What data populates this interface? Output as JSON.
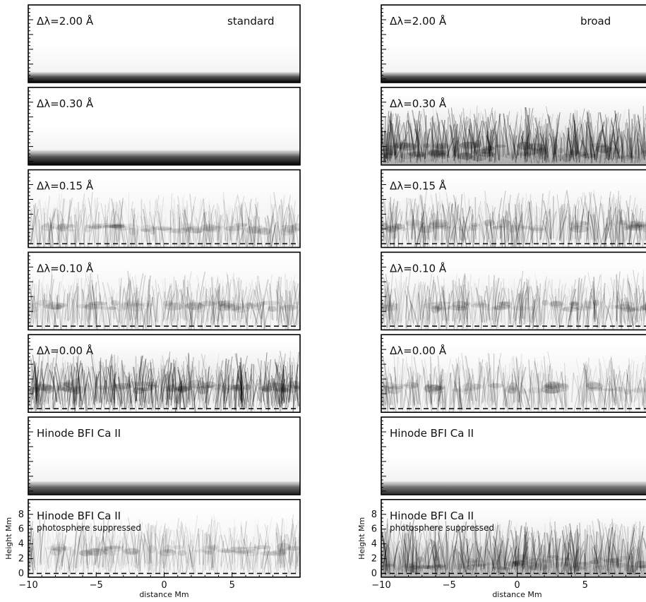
{
  "chart_data": {
    "type": "heatmap",
    "columns": [
      {
        "title": "standard",
        "panels": [
          {
            "label": "Δλ=2.00 Å",
            "sublabel": "",
            "kind": "bottom_dark",
            "darkness": 1.0,
            "band_height_mm": 0.6
          },
          {
            "label": "Δλ=0.30 Å",
            "sublabel": "",
            "kind": "bottom_dark",
            "darkness": 1.0,
            "band_height_mm": 1.2
          },
          {
            "label": "Δλ=0.15 Å",
            "sublabel": "",
            "kind": "fibrils",
            "darkness": 0.45,
            "center_mm": 2.2,
            "dashed_line": true
          },
          {
            "label": "Δλ=0.10 Å",
            "sublabel": "",
            "kind": "fibrils",
            "darkness": 0.5,
            "center_mm": 2.8,
            "dashed_line": true
          },
          {
            "label": "Δλ=0.00 Å",
            "sublabel": "",
            "kind": "fibrils",
            "darkness": 0.95,
            "center_mm": 3.0,
            "dashed_line": true
          },
          {
            "label": "Hinode BFI Ca II",
            "sublabel": "",
            "kind": "bottom_dark",
            "darkness": 0.9,
            "band_height_mm": 1.0
          },
          {
            "label": "Hinode BFI Ca II",
            "sublabel": "photosphere suppressed",
            "kind": "fibrils",
            "darkness": 0.45,
            "center_mm": 3.2,
            "dashed_line": true
          }
        ]
      },
      {
        "title": "broad",
        "panels": [
          {
            "label": "Δλ=2.00 Å",
            "sublabel": "",
            "kind": "bottom_dark",
            "darkness": 1.0,
            "band_height_mm": 0.6
          },
          {
            "label": "Δλ=0.30 Å",
            "sublabel": "",
            "kind": "bottom_fibrils",
            "darkness": 0.95,
            "center_mm": 1.2
          },
          {
            "label": "Δλ=0.15 Å",
            "sublabel": "",
            "kind": "fibrils",
            "darkness": 0.6,
            "center_mm": 2.5,
            "dashed_line": true
          },
          {
            "label": "Δλ=0.10 Å",
            "sublabel": "",
            "kind": "fibrils",
            "darkness": 0.55,
            "center_mm": 2.8,
            "dashed_line": true
          },
          {
            "label": "Δλ=0.00 Å",
            "sublabel": "",
            "kind": "fibrils",
            "darkness": 0.5,
            "center_mm": 2.8,
            "dashed_line": true
          },
          {
            "label": "Hinode BFI Ca II",
            "sublabel": "",
            "kind": "bottom_dark",
            "darkness": 0.85,
            "band_height_mm": 1.0
          },
          {
            "label": "Hinode BFI Ca II",
            "sublabel": "photosphere suppressed",
            "kind": "bottom_fibrils",
            "darkness": 0.8,
            "center_mm": 2.0,
            "dashed_line": true
          }
        ]
      }
    ],
    "xlabel": "distance Mm",
    "ylabel": "Height Mm",
    "xlim": [
      -10,
      10
    ],
    "ylim": [
      -0.5,
      10
    ],
    "xticks": [
      -10,
      -5,
      0,
      5
    ],
    "xtick_labels": [
      "−10",
      "−5",
      "0",
      "5"
    ],
    "yticks": [
      0,
      2,
      4,
      6,
      8
    ],
    "ytick_labels": [
      "0",
      "2",
      "4",
      "6",
      "8"
    ],
    "grid": false,
    "colormap": "grayscale-inverted"
  }
}
